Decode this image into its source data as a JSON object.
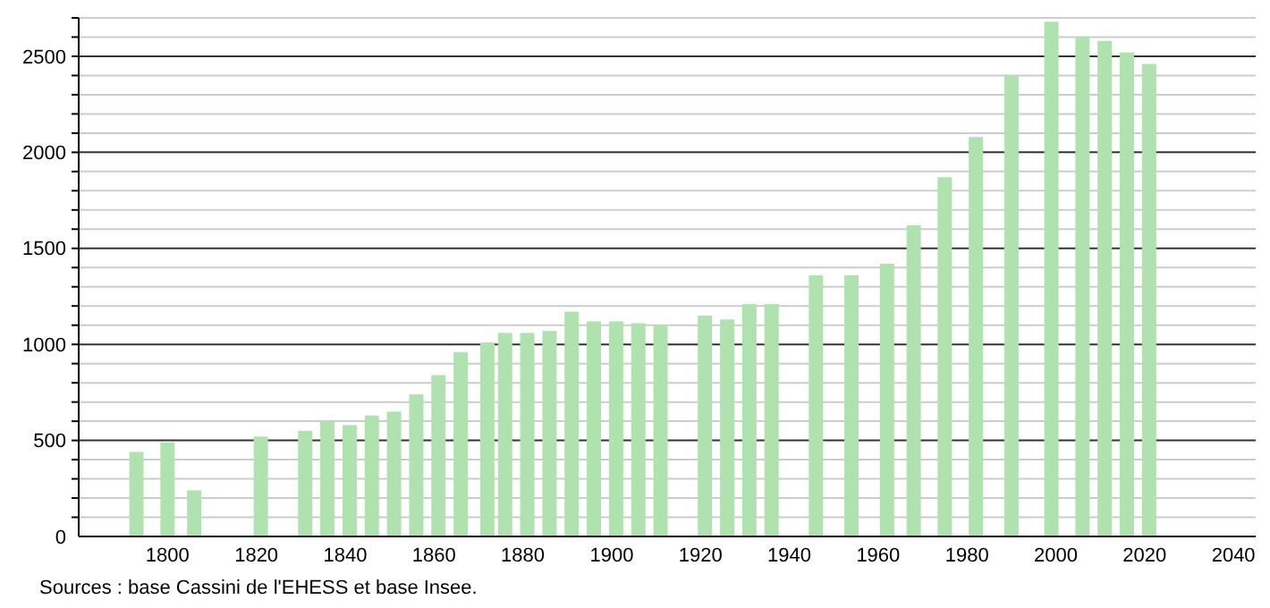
{
  "chart_data": {
    "type": "bar",
    "x": [
      1793,
      1800,
      1806,
      1821,
      1831,
      1836,
      1841,
      1846,
      1851,
      1856,
      1861,
      1866,
      1872,
      1876,
      1881,
      1886,
      1891,
      1896,
      1901,
      1906,
      1911,
      1921,
      1926,
      1931,
      1936,
      1946,
      1954,
      1962,
      1968,
      1975,
      1982,
      1990,
      1999,
      2006,
      2011,
      2016,
      2021
    ],
    "values": [
      440,
      490,
      240,
      520,
      550,
      600,
      580,
      630,
      650,
      740,
      840,
      960,
      1010,
      1060,
      1060,
      1070,
      1170,
      1120,
      1120,
      1110,
      1100,
      1150,
      1130,
      1210,
      1210,
      1360,
      1360,
      1420,
      1620,
      1870,
      2080,
      2400,
      2680,
      2600,
      2580,
      2520,
      2460
    ],
    "color": "#b0e2b0",
    "xlim": [
      1780,
      2045
    ],
    "xticks": [
      1800,
      1820,
      1840,
      1860,
      1880,
      1900,
      1920,
      1940,
      1960,
      1980,
      2000,
      2020,
      2040
    ],
    "ylim": [
      0,
      2700
    ],
    "yticks": [
      0,
      {
        "value": 100,
        "label": null
      },
      {
        "value": 200,
        "label": null
      },
      {
        "value": 300,
        "label": null
      },
      {
        "value": 400,
        "label": null
      },
      500,
      {
        "value": 600,
        "label": null
      },
      {
        "value": 700,
        "label": null
      },
      {
        "value": 800,
        "label": null
      },
      {
        "value": 900,
        "label": null
      },
      1000,
      {
        "value": 1100,
        "label": null
      },
      {
        "value": 1200,
        "label": null
      },
      {
        "value": 1300,
        "label": null
      },
      {
        "value": 1400,
        "label": null
      },
      1500,
      {
        "value": 1600,
        "label": null
      },
      {
        "value": 1700,
        "label": null
      },
      {
        "value": 1800,
        "label": null
      },
      {
        "value": 1900,
        "label": null
      },
      2000,
      {
        "value": 2100,
        "label": null
      },
      {
        "value": 2200,
        "label": null
      },
      {
        "value": 2300,
        "label": null
      },
      {
        "value": 2400,
        "label": null
      },
      2500,
      {
        "value": 2600,
        "label": null
      },
      {
        "value": 2700,
        "label": null
      }
    ],
    "grid": "y",
    "annotations": [
      "Sources : base Cassini de l'EHESS et base Insee."
    ]
  }
}
